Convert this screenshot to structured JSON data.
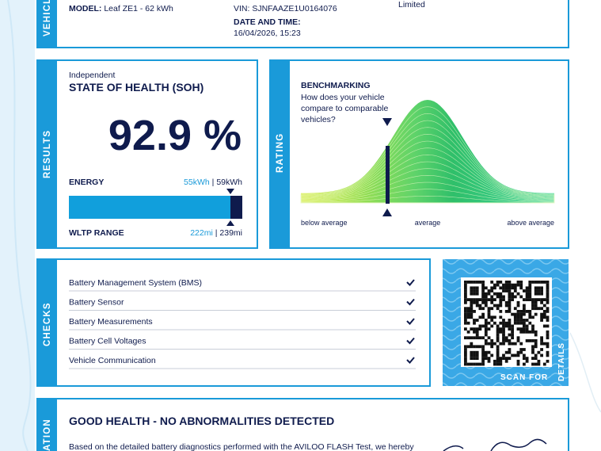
{
  "vehicle": {
    "tab": "VEHICLE",
    "model_label": "MODEL:",
    "model": "Leaf ZE1 - 62 kWh",
    "vin_label": "VIN:",
    "vin": "SJNFAAZE1U0164076",
    "date_label": "DATE AND TIME:",
    "date": "16/04/2026, 15:23",
    "owner": "Limited"
  },
  "results": {
    "tab": "RESULTS",
    "subtitle": "Independent",
    "title": "STATE OF HEALTH (SOH)",
    "soh": "92.9 %",
    "energy_label": "ENERGY",
    "energy_current": "55kWh",
    "separator": "|",
    "energy_max": "59kWh",
    "range_label": "WLTP RANGE",
    "range_current": "222mi",
    "range_max": "239mi"
  },
  "rating": {
    "tab": "RATING",
    "title": "BENCHMARKING",
    "question": [
      "How does your vehicle",
      "compare to comparable",
      "vehicles?"
    ],
    "below": "below average",
    "average": "average",
    "above": "above average"
  },
  "checks": {
    "tab": "CHECKS",
    "items": [
      "Battery Management System (BMS)",
      "Battery Sensor",
      "Battery Measurements",
      "Battery Cell Voltages",
      "Vehicle Communication"
    ]
  },
  "qr": {
    "scan": "SCAN FOR",
    "details": "DETAILS"
  },
  "conclusion": {
    "tab": "ATION",
    "title": "GOOD HEALTH - NO ABNORMALITIES DETECTED",
    "text": "Based on the detailed battery diagnostics performed with the AVILOO FLASH Test, we hereby"
  }
}
